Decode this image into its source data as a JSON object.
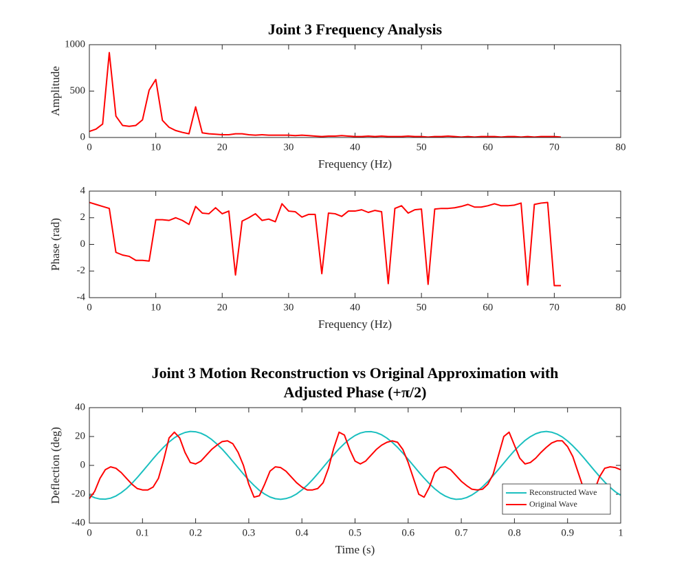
{
  "chart_data": [
    {
      "type": "line",
      "title": [
        "Joint 3 Frequency Analysis"
      ],
      "x_label": "Frequency (Hz)",
      "y_label": "Amplitude",
      "x": [
        0,
        1,
        2,
        3,
        4,
        5,
        6,
        7,
        8,
        9,
        10,
        11,
        12,
        13,
        14,
        15,
        16,
        17,
        18,
        19,
        20,
        21,
        22,
        23,
        24,
        25,
        26,
        27,
        28,
        29,
        30,
        31,
        32,
        33,
        34,
        35,
        36,
        37,
        38,
        39,
        40,
        41,
        42,
        43,
        44,
        45,
        46,
        47,
        48,
        49,
        50,
        51,
        52,
        53,
        54,
        55,
        56,
        57,
        58,
        59,
        60,
        61,
        62,
        63,
        64,
        65,
        66,
        67,
        68,
        69,
        70,
        71
      ],
      "series": [
        {
          "color": "#ff0000",
          "values": [
            65,
            90,
            145,
            915,
            230,
            130,
            120,
            130,
            190,
            510,
            625,
            185,
            110,
            75,
            55,
            40,
            330,
            50,
            40,
            35,
            30,
            30,
            40,
            40,
            30,
            25,
            30,
            25,
            25,
            25,
            25,
            20,
            25,
            20,
            15,
            10,
            15,
            15,
            20,
            15,
            10,
            10,
            15,
            10,
            15,
            10,
            10,
            10,
            15,
            10,
            10,
            5,
            10,
            10,
            15,
            10,
            5,
            10,
            5,
            10,
            10,
            10,
            5,
            10,
            10,
            5,
            10,
            5,
            10,
            10,
            10,
            5
          ]
        }
      ],
      "xlim": [
        0,
        80
      ],
      "xticks": [
        0,
        10,
        20,
        30,
        40,
        50,
        60,
        70,
        80
      ],
      "ylim": [
        0,
        1000
      ],
      "yticks": [
        0,
        500,
        1000
      ],
      "grid": false
    },
    {
      "type": "line",
      "x_label": "Frequency (Hz)",
      "y_label": "Phase (rad)",
      "x": [
        0,
        1,
        2,
        3,
        4,
        5,
        6,
        7,
        8,
        9,
        10,
        11,
        12,
        13,
        14,
        15,
        16,
        17,
        18,
        19,
        20,
        21,
        22,
        23,
        24,
        25,
        26,
        27,
        28,
        29,
        30,
        31,
        32,
        33,
        34,
        35,
        36,
        37,
        38,
        39,
        40,
        41,
        42,
        43,
        44,
        45,
        46,
        47,
        48,
        49,
        50,
        51,
        52,
        53,
        54,
        55,
        56,
        57,
        58,
        59,
        60,
        61,
        62,
        63,
        64,
        65,
        66,
        67,
        68,
        69,
        70,
        71
      ],
      "series": [
        {
          "color": "#ff0000",
          "values": [
            3.15,
            3.0,
            2.85,
            2.7,
            -0.6,
            -0.8,
            -0.9,
            -1.2,
            -1.2,
            -1.25,
            1.85,
            1.85,
            1.8,
            2.0,
            1.8,
            1.5,
            2.85,
            2.35,
            2.3,
            2.75,
            2.3,
            2.5,
            -2.3,
            1.75,
            2.0,
            2.3,
            1.8,
            1.9,
            1.7,
            3.05,
            2.5,
            2.45,
            2.05,
            2.25,
            2.25,
            -2.2,
            2.35,
            2.3,
            2.1,
            2.5,
            2.5,
            2.6,
            2.4,
            2.55,
            2.45,
            -2.95,
            2.7,
            2.9,
            2.35,
            2.6,
            2.65,
            -3.0,
            2.65,
            2.7,
            2.7,
            2.75,
            2.85,
            3.0,
            2.8,
            2.8,
            2.9,
            3.05,
            2.9,
            2.9,
            2.95,
            3.1,
            -3.05,
            3.0,
            3.1,
            3.15,
            -3.1,
            -3.1
          ]
        }
      ],
      "xlim": [
        0,
        80
      ],
      "xticks": [
        0,
        10,
        20,
        30,
        40,
        50,
        60,
        70,
        80
      ],
      "ylim": [
        -4,
        4
      ],
      "yticks": [
        -4,
        -2,
        0,
        2,
        4
      ],
      "grid": false
    },
    {
      "type": "line",
      "title": [
        "Joint 3 Motion Reconstruction vs Original Approximation with",
        "Adjusted Phase (+π/2)"
      ],
      "x_label": "Time (s)",
      "y_label": "Deflection (deg)",
      "x": [
        0,
        0.01,
        0.02,
        0.03,
        0.04,
        0.05,
        0.06,
        0.07,
        0.08,
        0.09,
        0.1,
        0.11,
        0.12,
        0.13,
        0.14,
        0.15,
        0.16,
        0.17,
        0.18,
        0.19,
        0.2,
        0.21,
        0.22,
        0.23,
        0.24,
        0.25,
        0.26,
        0.27,
        0.28,
        0.29,
        0.3,
        0.31,
        0.32,
        0.33,
        0.34,
        0.35,
        0.36,
        0.37,
        0.38,
        0.39,
        0.4,
        0.41,
        0.42,
        0.43,
        0.44,
        0.45,
        0.46,
        0.47,
        0.48,
        0.49,
        0.5,
        0.51,
        0.52,
        0.53,
        0.54,
        0.55,
        0.56,
        0.57,
        0.58,
        0.59,
        0.6,
        0.61,
        0.62,
        0.63,
        0.64,
        0.65,
        0.66,
        0.67,
        0.68,
        0.69,
        0.7,
        0.71,
        0.72,
        0.73,
        0.74,
        0.75,
        0.76,
        0.77,
        0.78,
        0.79,
        0.8,
        0.81,
        0.82,
        0.83,
        0.84,
        0.85,
        0.86,
        0.87,
        0.88,
        0.89,
        0.9,
        0.91,
        0.92,
        0.93,
        0.94,
        0.95,
        0.96,
        0.97,
        0.98,
        0.99,
        1
      ],
      "series": [
        {
          "name": "Reconstructed Wave",
          "color": "#1abfbf",
          "values": [
            -20.7,
            -22.4,
            -23.3,
            -23.4,
            -22.7,
            -21.2,
            -18.9,
            -16.0,
            -12.5,
            -8.5,
            -4.2,
            0.2,
            4.6,
            8.8,
            12.7,
            16.2,
            19.1,
            21.3,
            22.8,
            23.5,
            23.3,
            22.3,
            20.5,
            18.0,
            14.8,
            11.2,
            7.1,
            2.8,
            -1.6,
            -6.0,
            -10.2,
            -13.9,
            -17.3,
            -19.9,
            -21.9,
            -23.1,
            -23.5,
            -23.0,
            -21.8,
            -19.8,
            -17.0,
            -13.7,
            -9.9,
            -5.7,
            -1.3,
            3.1,
            7.4,
            11.5,
            15.1,
            18.2,
            20.7,
            22.4,
            23.3,
            23.4,
            22.7,
            21.2,
            18.9,
            16.0,
            12.5,
            8.5,
            4.2,
            -0.2,
            -4.6,
            -8.8,
            -12.7,
            -16.2,
            -19.1,
            -21.3,
            -22.8,
            -23.5,
            -23.3,
            -22.3,
            -20.5,
            -18.0,
            -14.8,
            -11.2,
            -7.1,
            -2.8,
            1.6,
            6.0,
            10.2,
            13.9,
            17.3,
            19.9,
            21.9,
            23.1,
            23.5,
            23.0,
            21.7,
            19.7,
            16.9,
            13.5,
            9.7,
            5.5,
            1.1,
            -3.3,
            -7.6,
            -11.6,
            -15.2,
            -18.3,
            -20.7
          ]
        },
        {
          "name": "Original Wave",
          "color": "#ff0000",
          "values": [
            -23,
            -18,
            -9,
            -3,
            -1,
            -2,
            -5,
            -9,
            -13,
            -16,
            -17,
            -17,
            -15,
            -9,
            4,
            19,
            23,
            19,
            9,
            2,
            1,
            3,
            7,
            11,
            14,
            16.5,
            17,
            15,
            9,
            0,
            -13,
            -22,
            -21,
            -13,
            -4,
            -1,
            -1.5,
            -4,
            -8,
            -12,
            -15,
            -17,
            -17,
            -16,
            -12,
            -2,
            12,
            23,
            21,
            11,
            3,
            1,
            3,
            7,
            11,
            14,
            16,
            17,
            16,
            11,
            2,
            -9,
            -20,
            -22,
            -15,
            -5,
            -1.5,
            -1,
            -3,
            -7,
            -11,
            -14,
            -16.5,
            -17,
            -16.5,
            -13,
            -6,
            7,
            20,
            23,
            14,
            5,
            1,
            2,
            5,
            9,
            12.5,
            15.5,
            17,
            17,
            13,
            6,
            -5,
            -16,
            -22,
            -18,
            -8,
            -2,
            -1,
            -1.5,
            -3
          ]
        }
      ],
      "xlim": [
        0,
        1
      ],
      "xticks": [
        0,
        0.1,
        0.2,
        0.3,
        0.4,
        0.5,
        0.6,
        0.7,
        0.8,
        0.9,
        1
      ],
      "ylim": [
        -40,
        40
      ],
      "yticks": [
        -40,
        -20,
        0,
        20,
        40
      ],
      "grid": false,
      "legend": "lower right"
    }
  ]
}
